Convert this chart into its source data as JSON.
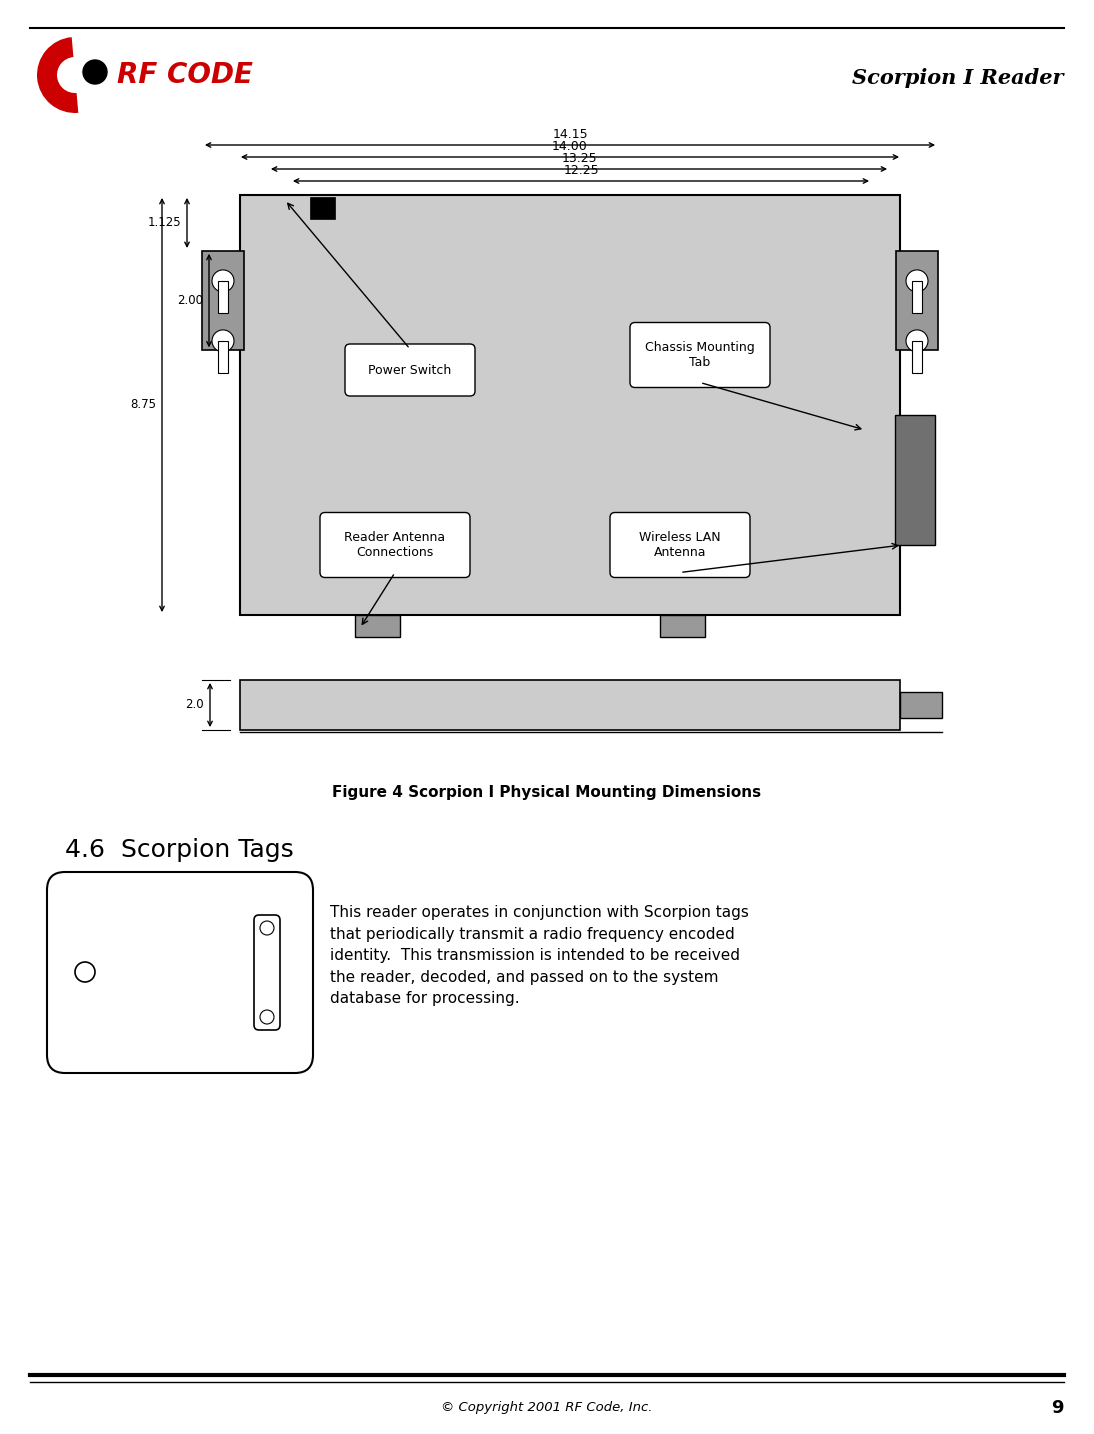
{
  "page_title": "Scorpion I Reader",
  "page_number": "9",
  "copyright_text": "© Copyright 2001 RF Code, Inc.",
  "figure_caption": "Figure 4 Scorpion I Physical Mounting Dimensions",
  "section_title": "4.6  Scorpion Tags",
  "section_text": "This reader operates in conjunction with Scorpion tags\nthat periodically transmit a radio frequency encoded\nidentity.  This transmission is intended to be received\nthe reader, decoded, and passed on to the system\ndatabase for processing.",
  "bg_color": "#ffffff",
  "device_fill": "#cccccc",
  "tab_fill": "#999999",
  "dark_fill": "#707070",
  "dim_labels": [
    "14.15",
    "14.00",
    "13.25",
    "12.25"
  ],
  "left_dim_labels": [
    "1.125",
    "2.00",
    "8.75"
  ],
  "side_dim_label": "2.0"
}
